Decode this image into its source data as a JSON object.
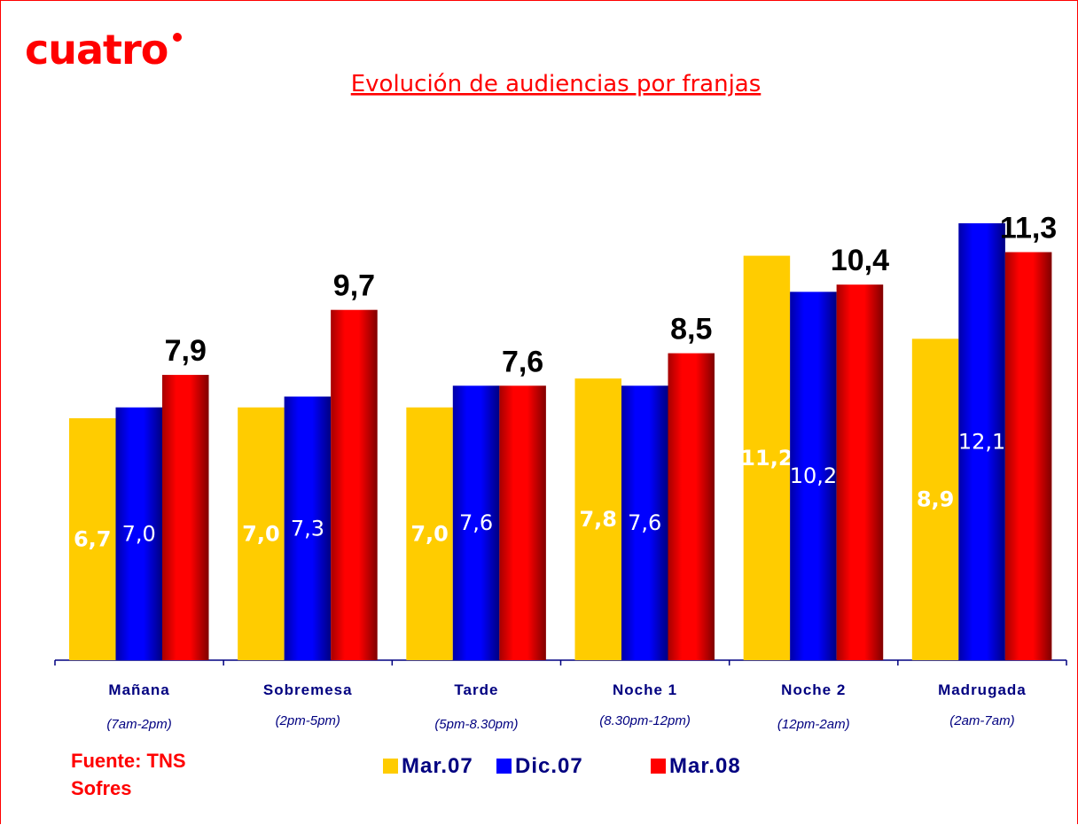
{
  "logo": "cuatro",
  "chart_data": {
    "type": "bar",
    "title": "Evolución de audiencias por franjas",
    "categories": [
      "Mañana",
      "Sobremesa",
      "Tarde",
      "Noche 1",
      "Noche 2",
      "Madrugada"
    ],
    "category_subtitles": [
      "(7am-2pm)",
      "(2pm-5pm)",
      "(5pm-8.30pm)",
      "(8.30pm-12pm)",
      "(12pm-2am)",
      "(2am-7am)"
    ],
    "series": [
      {
        "name": "Mar.07",
        "color": "#ffcc00",
        "values": [
          6.7,
          7.0,
          7.0,
          7.8,
          11.2,
          8.9
        ],
        "value_labels": [
          "6,7",
          "7,0",
          "7,0",
          "7,8",
          "11,2",
          "8,9"
        ]
      },
      {
        "name": "Dic.07",
        "color": "#0000ff",
        "values": [
          7.0,
          7.3,
          7.6,
          7.6,
          10.2,
          12.1
        ],
        "value_labels": [
          "7,0",
          "7,3",
          "7,6",
          "7,6",
          "10,2",
          "12,1"
        ]
      },
      {
        "name": "Mar.08",
        "color": "#ff0000",
        "values": [
          7.9,
          9.7,
          7.6,
          8.5,
          10.4,
          11.3
        ],
        "value_labels": [
          "7,9",
          "9,7",
          "7,6",
          "8,5",
          "10,4",
          "11,3"
        ]
      }
    ],
    "source": "Fuente: TNS Sofres"
  }
}
